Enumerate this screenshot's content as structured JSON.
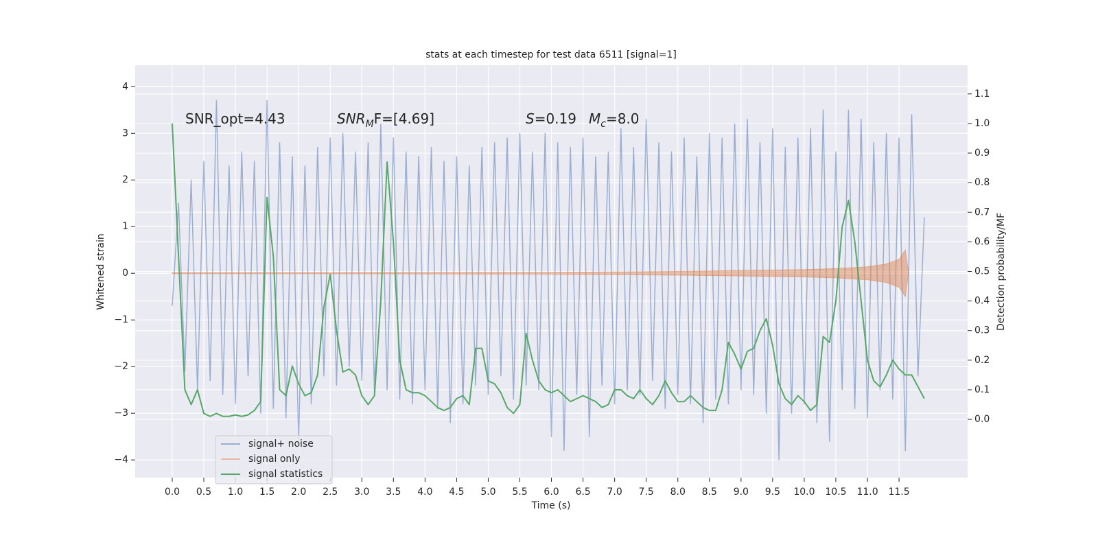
{
  "chart_data": {
    "type": "line",
    "title": "stats at each timestep for test data 6511 [signal=1]",
    "xlabel": "Time (s)",
    "ylabel": "Whitened strain",
    "y2label": "Detection probability/MF",
    "annotations": [
      [
        {
          "text": "SNR_opt=4.43"
        }
      ],
      [
        {
          "text": "SNR",
          "italic": true
        },
        {
          "text": "M",
          "italic": true,
          "sub": true
        },
        {
          "text": "F=[4.69]",
          "italic": false
        }
      ],
      [
        {
          "text": "S",
          "italic": true
        },
        {
          "text": "=0.19"
        }
      ],
      [
        {
          "text": "M",
          "italic": true
        },
        {
          "text": "c",
          "italic": true,
          "sub": true
        },
        {
          "text": "=8.0"
        }
      ]
    ],
    "x": [
      0,
      0.1,
      0.2,
      0.3,
      0.4,
      0.5,
      0.6,
      0.7,
      0.8,
      0.9,
      1,
      1.1,
      1.2,
      1.3,
      1.4,
      1.5,
      1.6,
      1.7,
      1.8,
      1.9,
      2,
      2.1,
      2.2,
      2.3,
      2.4,
      2.5,
      2.6,
      2.7,
      2.8,
      2.9,
      3,
      3.1,
      3.2,
      3.3,
      3.4,
      3.5,
      3.6,
      3.7,
      3.8,
      3.9,
      4,
      4.1,
      4.2,
      4.3,
      4.4,
      4.5,
      4.6,
      4.7,
      4.8,
      4.9,
      5,
      5.1,
      5.2,
      5.3,
      5.4,
      5.5,
      5.6,
      5.7,
      5.8,
      5.9,
      6,
      6.1,
      6.2,
      6.3,
      6.4,
      6.5,
      6.6,
      6.7,
      6.8,
      6.9,
      7,
      7.1,
      7.2,
      7.3,
      7.4,
      7.5,
      7.6,
      7.7,
      7.8,
      7.9,
      8,
      8.1,
      8.2,
      8.3,
      8.4,
      8.5,
      8.6,
      8.7,
      8.8,
      8.9,
      9,
      9.1,
      9.2,
      9.3,
      9.4,
      9.5,
      9.6,
      9.7,
      9.8,
      9.9,
      10,
      10.1,
      10.2,
      10.3,
      10.4,
      10.5,
      10.6,
      10.7,
      10.8,
      10.9,
      11,
      11.1,
      11.2,
      11.3,
      11.4,
      11.5,
      11.6,
      11.7,
      11.8,
      11.9
    ],
    "series": [
      {
        "name": "signal+ noise",
        "color": "#4c72b0",
        "opacity": 0.5,
        "axis": "y",
        "values": [
          -0.7,
          1.5,
          -2.1,
          2.0,
          -2.5,
          2.4,
          -2.3,
          3.7,
          -2.6,
          2.3,
          -2.8,
          2.6,
          -2.2,
          2.4,
          -3.0,
          3.7,
          -2.9,
          2.8,
          -3.1,
          2.5,
          -3.6,
          2.3,
          -2.8,
          2.7,
          -2.2,
          2.9,
          -2.4,
          3.0,
          -2.0,
          2.6,
          -2.3,
          2.8,
          -2.6,
          3.2,
          -2.5,
          2.9,
          -2.7,
          2.6,
          -2.8,
          2.5,
          -2.5,
          2.7,
          -2.9,
          2.4,
          -3.2,
          2.5,
          -2.8,
          2.3,
          -2.4,
          2.7,
          -2.6,
          2.8,
          -2.2,
          2.9,
          -2.7,
          3.0,
          -2.4,
          2.6,
          -2.5,
          3.0,
          -3.5,
          2.8,
          -3.8,
          2.7,
          -2.6,
          2.9,
          -3.5,
          2.5,
          -2.4,
          2.6,
          -2.8,
          3.1,
          -2.5,
          2.7,
          -2.6,
          3.3,
          -2.3,
          2.8,
          -2.9,
          2.6,
          -2.6,
          2.9,
          -2.8,
          2.5,
          -3.2,
          3.0,
          -2.7,
          2.9,
          -2.8,
          3.2,
          -2.5,
          3.3,
          -2.6,
          2.8,
          -3.0,
          3.1,
          -4.0,
          2.7,
          -3.0,
          2.9,
          -2.8,
          3.1,
          -3.2,
          3.5,
          -3.6,
          2.6,
          -2.5,
          3.5,
          -2.9,
          3.3,
          -3.1,
          2.8,
          -2.5,
          3.0,
          -2.7,
          2.9,
          -3.8,
          3.4,
          -2.2,
          1.2
        ]
      },
      {
        "name": "signal only",
        "color": "#dd8452",
        "opacity": 0.5,
        "axis": "y",
        "envelope": true,
        "x": [
          0,
          2,
          4,
          6,
          8,
          9,
          10,
          10.5,
          11,
          11.3,
          11.5,
          11.6,
          11.65
        ],
        "values": [
          0.01,
          0.01,
          0.015,
          0.02,
          0.04,
          0.06,
          0.08,
          0.1,
          0.14,
          0.2,
          0.3,
          0.5,
          0.01
        ]
      },
      {
        "name": "signal statistics",
        "color": "#55a868",
        "opacity": 1,
        "axis": "y2",
        "values": [
          1.0,
          0.55,
          0.1,
          0.05,
          0.1,
          0.02,
          0.01,
          0.02,
          0.01,
          0.01,
          0.015,
          0.01,
          0.015,
          0.03,
          0.06,
          0.75,
          0.55,
          0.1,
          0.08,
          0.18,
          0.12,
          0.08,
          0.09,
          0.15,
          0.38,
          0.49,
          0.3,
          0.16,
          0.17,
          0.15,
          0.08,
          0.05,
          0.08,
          0.4,
          0.87,
          0.6,
          0.2,
          0.1,
          0.09,
          0.09,
          0.08,
          0.06,
          0.04,
          0.03,
          0.04,
          0.07,
          0.08,
          0.05,
          0.24,
          0.24,
          0.13,
          0.12,
          0.09,
          0.04,
          0.02,
          0.05,
          0.29,
          0.2,
          0.13,
          0.1,
          0.09,
          0.1,
          0.08,
          0.06,
          0.07,
          0.08,
          0.07,
          0.06,
          0.04,
          0.05,
          0.1,
          0.1,
          0.08,
          0.07,
          0.1,
          0.07,
          0.05,
          0.08,
          0.13,
          0.09,
          0.06,
          0.06,
          0.08,
          0.06,
          0.04,
          0.03,
          0.03,
          0.1,
          0.26,
          0.22,
          0.17,
          0.23,
          0.24,
          0.3,
          0.34,
          0.25,
          0.12,
          0.07,
          0.05,
          0.08,
          0.06,
          0.03,
          0.05,
          0.28,
          0.26,
          0.4,
          0.65,
          0.74,
          0.6,
          0.4,
          0.2,
          0.13,
          0.11,
          0.15,
          0.2,
          0.17,
          0.15,
          0.15,
          0.11,
          0.07
        ]
      }
    ],
    "xlim": [
      -0.586,
      12.585
    ],
    "ylim": [
      -4.38,
      4.46
    ],
    "y2lim": [
      -0.197,
      1.197
    ],
    "xticks": [
      {
        "value": 0,
        "label": "0.0"
      },
      {
        "value": 0.5,
        "label": "0.5"
      },
      {
        "value": 1,
        "label": "1.0"
      },
      {
        "value": 1.5,
        "label": "1.5"
      },
      {
        "value": 2,
        "label": "2.0"
      },
      {
        "value": 2.5,
        "label": "2.5"
      },
      {
        "value": 3,
        "label": "3.0"
      },
      {
        "value": 3.5,
        "label": "3.5"
      },
      {
        "value": 4,
        "label": "4.0"
      },
      {
        "value": 4.5,
        "label": "4.5"
      },
      {
        "value": 5,
        "label": "5.0"
      },
      {
        "value": 5.5,
        "label": "5.5"
      },
      {
        "value": 6,
        "label": "6.0"
      },
      {
        "value": 6.5,
        "label": "6.5"
      },
      {
        "value": 7,
        "label": "7.0"
      },
      {
        "value": 7.5,
        "label": "7.5"
      },
      {
        "value": 8,
        "label": "8.0"
      },
      {
        "value": 8.5,
        "label": "8.5"
      },
      {
        "value": 9,
        "label": "9.0"
      },
      {
        "value": 9.5,
        "label": "9.5"
      },
      {
        "value": 10,
        "label": "10.0"
      },
      {
        "value": 10.5,
        "label": "10.5"
      },
      {
        "value": 11,
        "label": "11.0"
      },
      {
        "value": 11.5,
        "label": "11.5"
      }
    ],
    "yticks": [
      {
        "value": -4,
        "label": "−4"
      },
      {
        "value": -3,
        "label": "−3"
      },
      {
        "value": -2,
        "label": "−2"
      },
      {
        "value": -1,
        "label": "−1"
      },
      0,
      1,
      2,
      3,
      4
    ],
    "y2ticks": [
      {
        "value": 0,
        "label": "0.0"
      },
      {
        "value": 0.1,
        "label": "0.1"
      },
      {
        "value": 0.2,
        "label": "0.2"
      },
      {
        "value": 0.3,
        "label": "0.3"
      },
      {
        "value": 0.4,
        "label": "0.4"
      },
      {
        "value": 0.5,
        "label": "0.5"
      },
      {
        "value": 0.6,
        "label": "0.6"
      },
      {
        "value": 0.7,
        "label": "0.7"
      },
      {
        "value": 0.8,
        "label": "0.8"
      },
      {
        "value": 0.9,
        "label": "0.9"
      },
      {
        "value": 1,
        "label": "1.0"
      },
      {
        "value": 1.1,
        "label": "1.1"
      }
    ],
    "grid": true,
    "legend": "lower left"
  }
}
